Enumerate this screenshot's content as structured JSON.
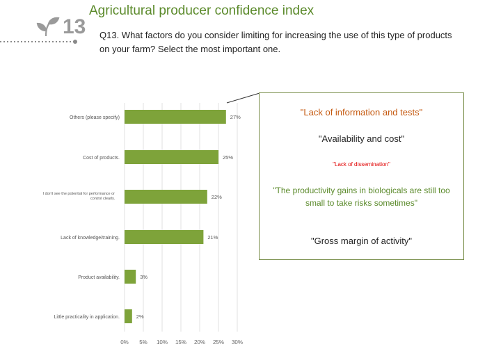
{
  "header": {
    "number": "13",
    "title": "Agricultural producer confidence index",
    "question": "Q13. What factors do you consider limiting for increasing the use of this type of products on your farm? Select the most important one."
  },
  "colors": {
    "bar": "#7ea33a",
    "title": "#5b8a2b",
    "quote_orange": "#c55a11",
    "quote_red": "#e00000",
    "quote_green": "#5b8a2b",
    "box_border": "#7a8f4c"
  },
  "chart_data": {
    "type": "bar",
    "orientation": "horizontal",
    "categories": [
      "Others (please specify)",
      "Cost of products.",
      "I don't see the potential for performance or control clearly.",
      "Lack of knowledge/training.",
      "Product availability.",
      "Little practicality in application."
    ],
    "values": [
      27,
      25,
      22,
      21,
      3,
      2
    ],
    "value_labels": [
      "27%",
      "25%",
      "22%",
      "21%",
      "3%",
      "2%"
    ],
    "xlim": [
      0,
      30
    ],
    "x_ticks": [
      "0%",
      "5%",
      "10%",
      "15%",
      "20%",
      "25%",
      "30%"
    ],
    "grid": true,
    "title": "",
    "xlabel": "",
    "ylabel": ""
  },
  "quotes": [
    "\"Lack of information and tests\"",
    "\"Availability and cost\"",
    "\"Lack of dissemination\"",
    "\"The productivity gains in biologicals are still too small to take risks sometimes\"",
    "\"Gross margin of activity\""
  ]
}
